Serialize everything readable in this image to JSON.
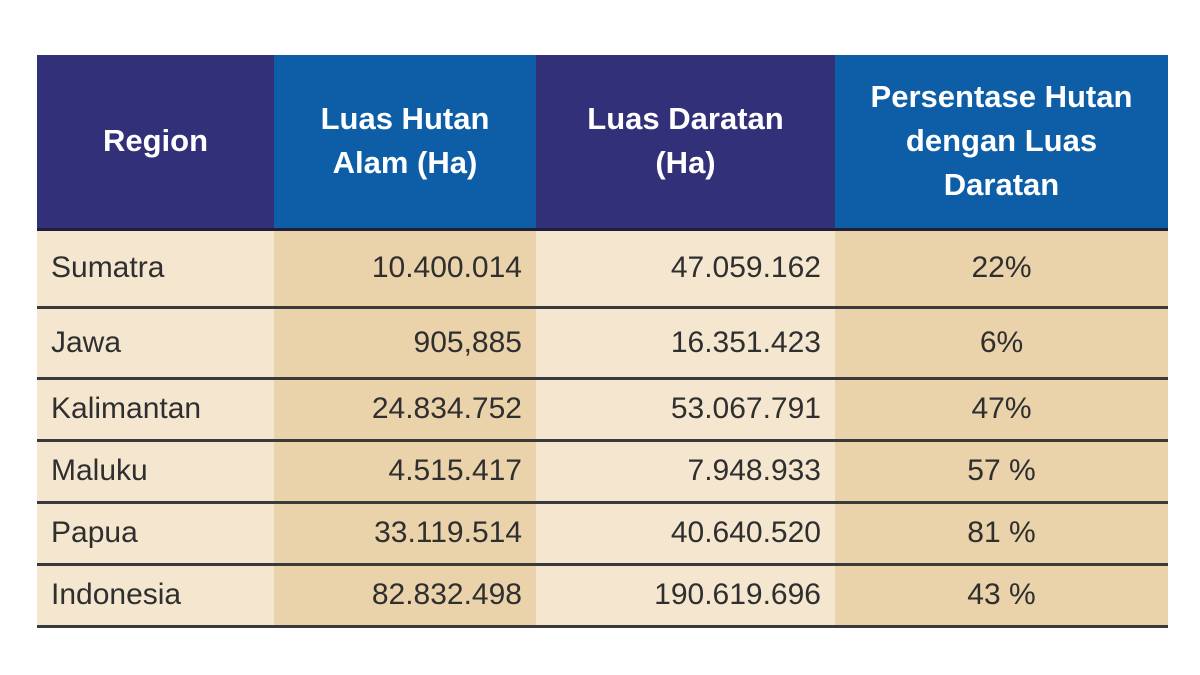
{
  "table": {
    "headers": {
      "region": "Region",
      "forest": [
        "Luas Hutan",
        "Alam (Ha)"
      ],
      "land": [
        "Luas Daratan",
        "(Ha)"
      ],
      "percent": [
        "Persentase Hutan",
        "dengan Luas",
        "Daratan"
      ]
    },
    "rows": [
      {
        "region": "Sumatra",
        "forest": "10.400.014",
        "land": "47.059.162",
        "percent": "22%"
      },
      {
        "region": "Jawa",
        "forest": "905,885",
        "land": "16.351.423",
        "percent": "6%"
      },
      {
        "region": "Kalimantan",
        "forest": "24.834.752",
        "land": "53.067.791",
        "percent": "47%"
      },
      {
        "region": "Maluku",
        "forest": "4.515.417",
        "land": "7.948.933",
        "percent": "57 %"
      },
      {
        "region": "Papua",
        "forest": "33.119.514",
        "land": "40.640.520",
        "percent": "81 %"
      },
      {
        "region": "Indonesia",
        "forest": "82.832.498",
        "land": "190.619.696",
        "percent": "43 %"
      }
    ]
  },
  "colors": {
    "header_dark": "#33307a",
    "header_blue": "#0d5ea7",
    "cell_light": "#f4e6cf",
    "cell_dark": "#ead2aa"
  }
}
